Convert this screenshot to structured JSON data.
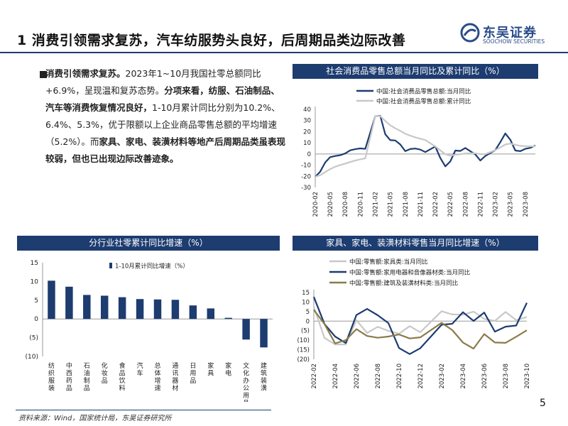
{
  "title": "1 消费引领需求复苏，汽车纺服势头良好，后周期品类边际改善",
  "logo": {
    "cn": "东吴证券",
    "en": "SOOCHOW SECURITIES",
    "brand_color": "#2a4c8a"
  },
  "body": [
    {
      "bold": true,
      "text": "消费引领需求复苏。"
    },
    {
      "bold": false,
      "text": "2023年1~10月我国社零总额同比+6.9%，呈现温和复苏态势。"
    },
    {
      "bold": true,
      "text": "分项来看，纺服、石油制品、汽车等消费恢复情况良好，"
    },
    {
      "bold": false,
      "text": "1-10月累计同比分别为10.2%、6.4%、5.3%，优于限额以上企业商品零售总额的平均增速（5.2%）。而"
    },
    {
      "bold": true,
      "text": "家具、家电、装潢材料等地产后周期品类虽表现较弱，但也已出现边际改善迹象。"
    }
  ],
  "source": "资料来源：Wind，国家统计局，东吴证券研究所",
  "page_number": "5",
  "colors": {
    "navy": "#1d3c70",
    "grey": "#c8c8c8",
    "olive": "#8b7b4a",
    "bar": "#1d3c70"
  },
  "chart_data": [
    {
      "id": "c1",
      "type": "line",
      "title": "社会消费品零售总额当月同比及累计同比（%）",
      "ylim": [
        -30,
        40
      ],
      "yticks": [
        -30,
        -20,
        -10,
        0,
        10,
        20,
        30,
        40
      ],
      "x": [
        "2020-02",
        "2020-03",
        "2020-04",
        "2020-05",
        "2020-06",
        "2020-07",
        "2020-08",
        "2020-09",
        "2020-10",
        "2020-11",
        "2020-12",
        "2021-01",
        "2021-02",
        "2021-03",
        "2021-04",
        "2021-05",
        "2021-06",
        "2021-07",
        "2021-08",
        "2021-09",
        "2021-10",
        "2021-11",
        "2021-12",
        "2022-01",
        "2022-02",
        "2022-03",
        "2022-04",
        "2022-05",
        "2022-06",
        "2022-07",
        "2022-08",
        "2022-09",
        "2022-10",
        "2022-11",
        "2022-12",
        "2023-01",
        "2023-02",
        "2023-03",
        "2023-04",
        "2023-05",
        "2023-06",
        "2023-07",
        "2023-08",
        "2023-09",
        "2023-10"
      ],
      "xtick_labels": [
        "2020-02",
        "2020-05",
        "2020-08",
        "2020-11",
        "2021-02",
        "2021-05",
        "2021-08",
        "2021-11",
        "2022-02",
        "2022-05",
        "2022-08",
        "2022-11",
        "2023-02",
        "2023-05",
        "2023-08"
      ],
      "series": [
        {
          "name": "中国:社会消费品零售总额:当月同比",
          "color": "#1d3c70",
          "values": [
            -20.5,
            -15.8,
            -7.5,
            -2.8,
            -1.8,
            -1.1,
            0.5,
            3.3,
            4.3,
            5.0,
            4.6,
            null,
            33.8,
            34.2,
            17.7,
            12.4,
            12.1,
            8.5,
            2.5,
            4.4,
            4.9,
            3.9,
            1.7,
            null,
            6.7,
            -3.5,
            -11.1,
            -6.7,
            3.1,
            2.7,
            5.4,
            2.5,
            -0.5,
            -5.9,
            -1.8,
            null,
            3.5,
            10.6,
            18.4,
            12.7,
            3.1,
            2.5,
            4.6,
            5.5,
            7.6
          ]
        },
        {
          "name": "中国:社会消费品零售总额:累计同比",
          "color": "#c8c8c8",
          "values": [
            -20.5,
            -19.0,
            -16.2,
            -13.5,
            -11.4,
            -9.9,
            -8.6,
            -7.2,
            -5.9,
            -4.8,
            -3.9,
            null,
            33.8,
            33.9,
            29.6,
            25.7,
            23.0,
            20.7,
            18.1,
            16.4,
            14.9,
            13.7,
            12.5,
            null,
            6.7,
            3.3,
            -0.2,
            -1.5,
            -0.7,
            -0.2,
            0.5,
            0.7,
            0.6,
            -0.1,
            -0.2,
            null,
            3.5,
            5.8,
            8.5,
            9.3,
            8.2,
            7.3,
            7.0,
            6.8,
            6.9
          ]
        }
      ]
    },
    {
      "id": "c2",
      "type": "bar",
      "title": "分行业社零累计同比增速（%）",
      "ylim": [
        -10,
        15
      ],
      "yticks": [
        -10,
        -5,
        0,
        5,
        10,
        15
      ],
      "ytick_labels": [
        "(10)",
        "(5)",
        "0",
        "5",
        "10",
        "15"
      ],
      "categories": [
        "纺织服装",
        "中西药品",
        "石油制品",
        "化妆品",
        "食品饮料",
        "汽车",
        "总体增速",
        "通讯器材",
        "日用品",
        "家具",
        "家电",
        "文化办公用品",
        "建筑装潢"
      ],
      "series": [
        {
          "name": "1-10月累计同比增速（%）",
          "color": "#1d3c70",
          "values": [
            10.2,
            8.6,
            6.4,
            6.2,
            5.8,
            5.3,
            5.2,
            5.1,
            3.6,
            2.8,
            0.3,
            -5.5,
            -7.6
          ]
        }
      ]
    },
    {
      "id": "c3",
      "type": "line",
      "title": "家具、家电、装潢材料零售当月同比增速（%）",
      "ylim": [
        -20,
        15
      ],
      "yticks": [
        -20,
        -15,
        -10,
        -5,
        0,
        5,
        10,
        15
      ],
      "ytick_labels": [
        "(20)",
        "(15)",
        "(10)",
        "(5)",
        "0",
        "5",
        "10",
        "15"
      ],
      "x": [
        "2022-02",
        "2022-03",
        "2022-04",
        "2022-05",
        "2022-06",
        "2022-07",
        "2022-08",
        "2022-09",
        "2022-10",
        "2022-11",
        "2022-12",
        "2023-01",
        "2023-02",
        "2023-03",
        "2023-04",
        "2023-05",
        "2023-06",
        "2023-07",
        "2023-08",
        "2023-09",
        "2023-10"
      ],
      "xtick_labels": [
        "2022-02",
        "2022-04",
        "2022-06",
        "2022-08",
        "2022-10",
        "2022-12",
        "2023-02",
        "2023-04",
        "2023-06",
        "2023-08",
        "2023-10"
      ],
      "series": [
        {
          "name": "中国:零售额:家具类:当月同比",
          "color": "#c8c8c8",
          "values": [
            7.4,
            -8.8,
            -12.2,
            -12.2,
            0.5,
            -6.2,
            -3.0,
            -5.1,
            -6.6,
            -2.6,
            -5.8,
            null,
            5.2,
            3.5,
            3.4,
            5.0,
            1.2,
            0.1,
            4.8,
            0.5,
            2.2
          ]
        },
        {
          "name": "中国:零售额:家用电器和音像器材类:当月同比",
          "color": "#1d3c70",
          "values": [
            12.7,
            -1.5,
            -8.1,
            -11.5,
            3.2,
            6.4,
            3.1,
            -1.0,
            -14.1,
            -17.3,
            -14.2,
            null,
            -1.9,
            -1.4,
            4.7,
            0.1,
            4.5,
            -5.5,
            -2.9,
            -2.3,
            9.6
          ]
        },
        {
          "name": "中国:零售额:建筑及装潢材料类:当月同比",
          "color": "#8b7b4a",
          "values": [
            5.9,
            -1.5,
            -11.7,
            -10.0,
            -4.2,
            -7.8,
            -8.7,
            -8.1,
            -7.0,
            -9.1,
            -8.5,
            null,
            -0.9,
            -4.7,
            -11.2,
            -14.4,
            -6.8,
            -11.2,
            -11.4,
            -8.2,
            -4.8
          ]
        }
      ]
    }
  ]
}
